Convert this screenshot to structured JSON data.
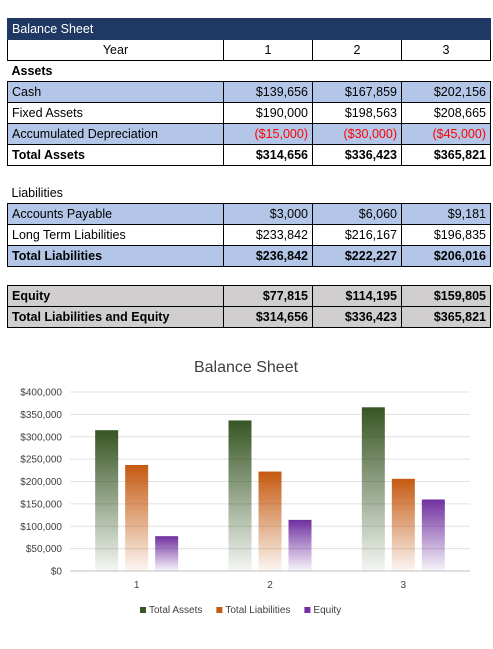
{
  "table": {
    "title": "Balance Sheet",
    "year_label": "Year",
    "years": [
      "1",
      "2",
      "3"
    ],
    "assets": {
      "heading": "Assets",
      "rows": [
        {
          "label": "Cash",
          "values": [
            "$139,656",
            "$167,859",
            "$202,156"
          ]
        },
        {
          "label": "Fixed Assets",
          "values": [
            "$190,000",
            "$198,563",
            "$208,665"
          ]
        },
        {
          "label": "Accumulated Depreciation",
          "values": [
            "($15,000)",
            "($30,000)",
            "($45,000)"
          ]
        }
      ],
      "total": {
        "label": "Total Assets",
        "values": [
          "$314,656",
          "$336,423",
          "$365,821"
        ]
      }
    },
    "liabilities": {
      "heading": "Liabilities",
      "rows": [
        {
          "label": "Accounts Payable",
          "values": [
            "$3,000",
            "$6,060",
            "$9,181"
          ]
        },
        {
          "label": "Long Term Liabilities",
          "values": [
            "$233,842",
            "$216,167",
            "$196,835"
          ]
        }
      ],
      "total": {
        "label": "Total Liabilities",
        "values": [
          "$236,842",
          "$222,227",
          "$206,016"
        ]
      }
    },
    "equity": {
      "label": "Equity",
      "values": [
        "$77,815",
        "$114,195",
        "$159,805"
      ]
    },
    "total_le": {
      "label": "Total Liabilities and Equity",
      "values": [
        "$314,656",
        "$336,423",
        "$365,821"
      ]
    }
  },
  "colors": {
    "header_bg": "#1f3864",
    "row_blue": "#b4c6e7",
    "row_gray": "#d0cece",
    "negative": "#ff0000",
    "total_assets": "#375623",
    "total_liabilities": "#c55a11",
    "equity": "#7030a0"
  },
  "chart_data": {
    "type": "bar",
    "title": "Balance Sheet",
    "categories": [
      "1",
      "2",
      "3"
    ],
    "series": [
      {
        "name": "Total Assets",
        "values": [
          314656,
          336423,
          365821
        ]
      },
      {
        "name": "Total Liabilities",
        "values": [
          236842,
          222227,
          206016
        ]
      },
      {
        "name": "Equity",
        "values": [
          77815,
          114195,
          159805
        ]
      }
    ],
    "ylim": [
      0,
      400000
    ],
    "yticks": [
      "$0",
      "$50,000",
      "$100,000",
      "$150,000",
      "$200,000",
      "$250,000",
      "$300,000",
      "$350,000",
      "$400,000"
    ],
    "grid": true,
    "legend": "bottom"
  }
}
